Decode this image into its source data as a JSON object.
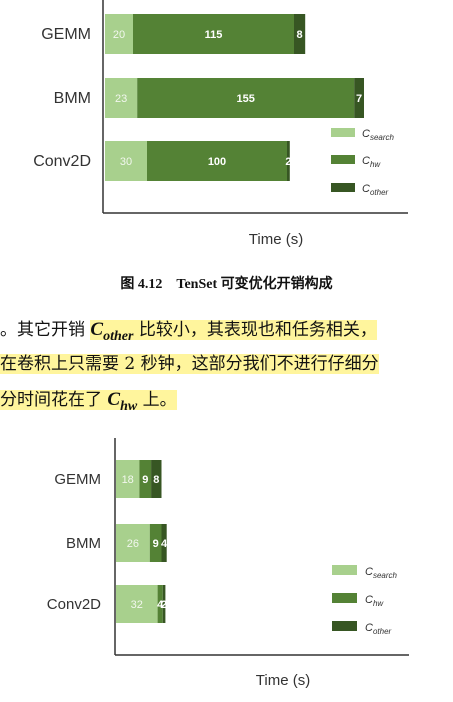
{
  "chart_data": [
    {
      "type": "bar",
      "orientation": "horizontal",
      "stacked": true,
      "categories": [
        "GEMM",
        "BMM",
        "Conv2D"
      ],
      "series": [
        {
          "name": "C_search",
          "values": [
            20,
            23,
            30
          ],
          "color": "#a8d08d"
        },
        {
          "name": "C_hw",
          "values": [
            115,
            155,
            100
          ],
          "color": "#548235"
        },
        {
          "name": "C_other",
          "values": [
            8,
            7,
            2
          ],
          "color": "#375623"
        }
      ],
      "xlabel": "Time (s)",
      "legend_position": "right",
      "grid": false
    },
    {
      "type": "bar",
      "orientation": "horizontal",
      "stacked": true,
      "categories": [
        "GEMM",
        "BMM",
        "Conv2D"
      ],
      "series": [
        {
          "name": "C_search",
          "values": [
            18,
            26,
            32
          ],
          "color": "#a8d08d"
        },
        {
          "name": "C_hw",
          "values": [
            9,
            9,
            4
          ],
          "color": "#548235"
        },
        {
          "name": "C_other",
          "values": [
            8,
            4,
            2
          ],
          "color": "#375623"
        }
      ],
      "xlabel": "Time (s)",
      "legend_position": "right",
      "grid": false
    }
  ],
  "legend": {
    "search_base": "C",
    "search_sub": "search",
    "hw_base": "C",
    "hw_sub": "hw",
    "other_base": "C",
    "other_sub": "other"
  },
  "caption": "图 4.12　TenSet 可变优化开销构成",
  "paragraph": {
    "l1a": "。其它开销 ",
    "l1_sym": "C",
    "l1_sub": "other",
    "l1b": " 比较小，其表现也和任务相关，",
    "l2": "在卷积上只需要 2 秒钟，这部分我们不进行仔细分",
    "l3a": "分时间花在了 ",
    "l3_sym": "C",
    "l3_sub": "hw",
    "l3b": " 上。"
  }
}
